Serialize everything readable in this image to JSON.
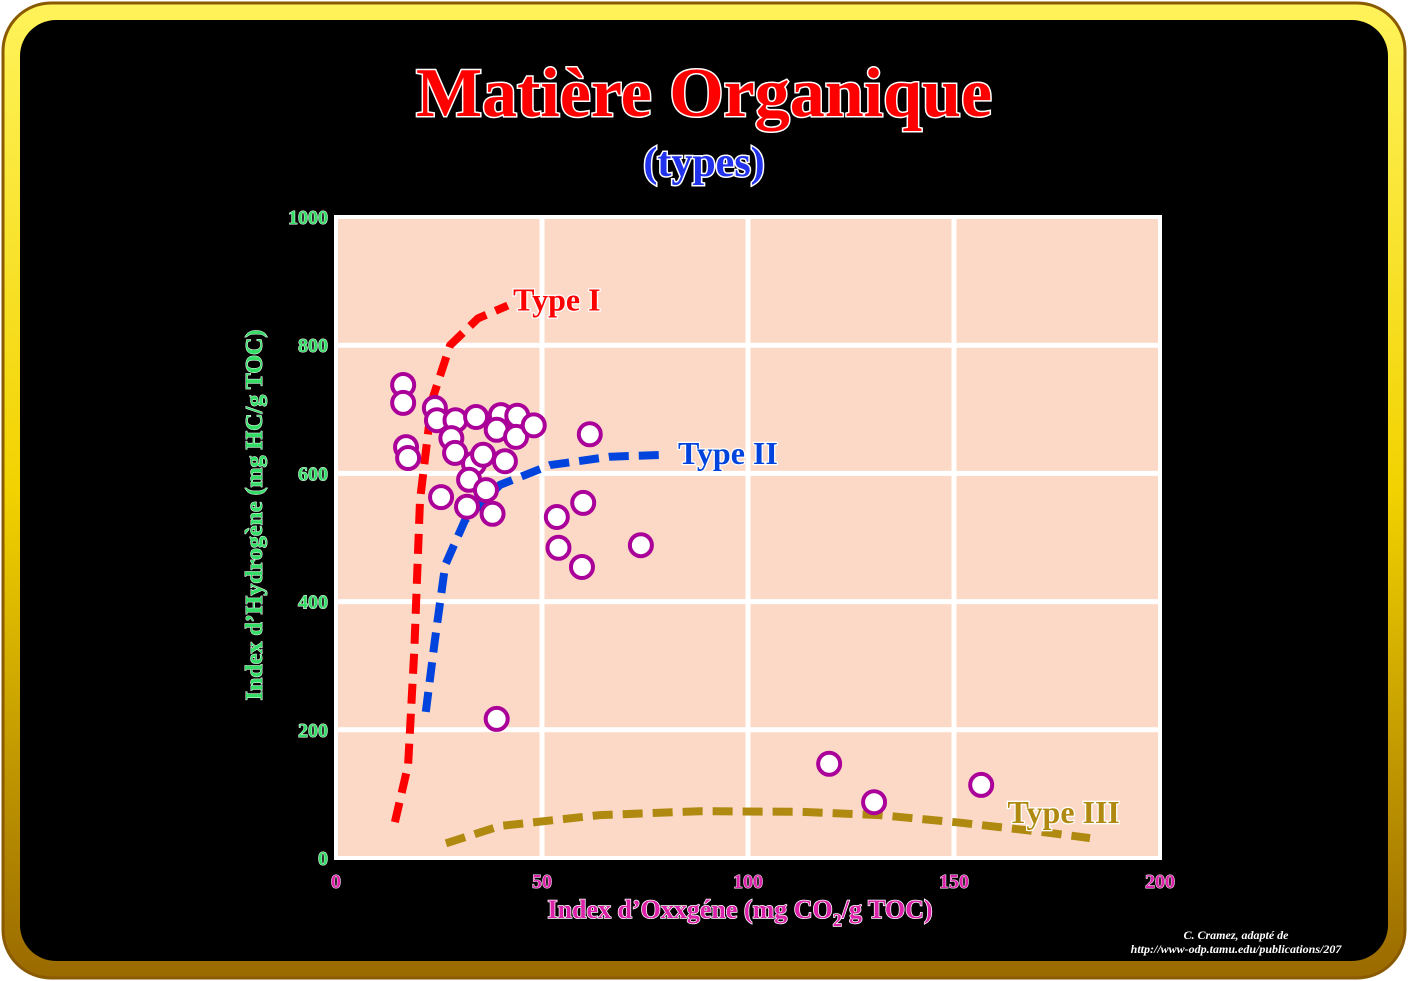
{
  "title": "Matière Organique",
  "subtitle": "(types)",
  "credit_line1": "C. Cramez, adapté de",
  "credit_line2": "http://www-odp.tamu.edu/publications/207",
  "colors": {
    "title": "#ff0000",
    "subtitle": "#2233ee",
    "ylabel": "#33dd66",
    "xlabel": "#dd22aa",
    "plot_bg": "#fcd9c6",
    "typeI": "#ff0000",
    "typeII": "#0044dd",
    "typeIII": "#b08a10",
    "points": "#aa0099"
  },
  "chart_data": {
    "type": "scatter",
    "title": "Matière Organique (types)",
    "xlabel": "Index d’Oxxgéne (mg CO",
    "xlabel_sub": "2",
    "xlabel_tail": "/g TOC)",
    "ylabel": "Index d’Hydrogène (mg HC/g TOC)",
    "xlim": [
      0,
      200
    ],
    "ylim": [
      0,
      1000
    ],
    "xticks": [
      0,
      50,
      100,
      150,
      200
    ],
    "yticks": [
      0,
      200,
      400,
      600,
      800,
      1000
    ],
    "grid": true,
    "points": [
      [
        16.3,
        738
      ],
      [
        16.3,
        710
      ],
      [
        17,
        641
      ],
      [
        17.5,
        624
      ],
      [
        24,
        702
      ],
      [
        24.5,
        683
      ],
      [
        29,
        683
      ],
      [
        28,
        655
      ],
      [
        28.9,
        632
      ],
      [
        34,
        688
      ],
      [
        40,
        691
      ],
      [
        44,
        690
      ],
      [
        39,
        668
      ],
      [
        43.7,
        657
      ],
      [
        48,
        675
      ],
      [
        61.6,
        661
      ],
      [
        33.5,
        615
      ],
      [
        35.7,
        629
      ],
      [
        41,
        619
      ],
      [
        32.3,
        590
      ],
      [
        36.4,
        574
      ],
      [
        25.5,
        563
      ],
      [
        31.8,
        548
      ],
      [
        38,
        537
      ],
      [
        53.6,
        532
      ],
      [
        60,
        554
      ],
      [
        54,
        484
      ],
      [
        74,
        488
      ],
      [
        59.7,
        454
      ],
      [
        39,
        217
      ],
      [
        119.7,
        147
      ],
      [
        130.6,
        87
      ],
      [
        156.6,
        114
      ]
    ],
    "curves": [
      {
        "name": "Type I",
        "label_at": [
          43,
          870
        ],
        "points": [
          [
            14.3,
            56
          ],
          [
            17.5,
            145
          ],
          [
            19,
            324
          ],
          [
            20.4,
            558
          ],
          [
            23.3,
            714
          ],
          [
            27.7,
            800
          ],
          [
            34.5,
            842
          ],
          [
            41.7,
            862
          ]
        ]
      },
      {
        "name": "Type II",
        "label_at": [
          83,
          630
        ],
        "points": [
          [
            21.8,
            228
          ],
          [
            24,
            340
          ],
          [
            26.5,
            457
          ],
          [
            31.3,
            527
          ],
          [
            39.8,
            582
          ],
          [
            52,
            613
          ],
          [
            66.5,
            626
          ],
          [
            79.9,
            629
          ]
        ]
      },
      {
        "name": "Type III",
        "label_at": [
          163,
          70
        ],
        "points": [
          [
            26.7,
            23
          ],
          [
            39.8,
            50
          ],
          [
            64,
            67
          ],
          [
            88.3,
            73
          ],
          [
            112.6,
            72
          ],
          [
            132,
            67
          ],
          [
            151.5,
            55
          ],
          [
            170.9,
            41
          ],
          [
            183,
            31
          ]
        ]
      }
    ]
  }
}
